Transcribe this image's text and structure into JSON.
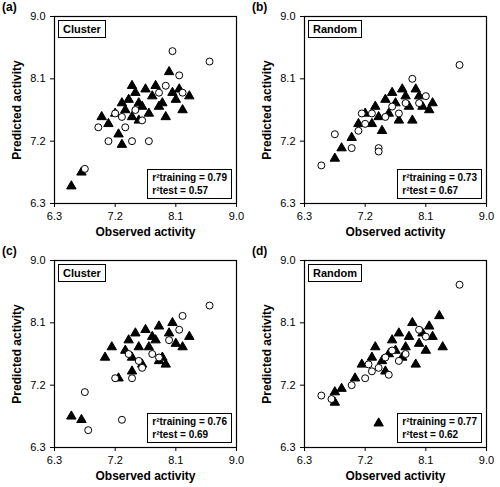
{
  "chart_data": [
    {
      "type": "scatter",
      "panel": "(a)",
      "title": "Cluster",
      "x_label": "Observed activity",
      "y_label": "Predicted activity",
      "xlim": [
        6.3,
        9.0
      ],
      "ylim": [
        6.3,
        9.0
      ],
      "xticks": [
        6.3,
        7.2,
        8.1,
        {
          "value": 9.0,
          "label": "9.0"
        }
      ],
      "yticks": [
        6.3,
        7.2,
        8.1,
        {
          "value": 9.0,
          "label": "9.0"
        }
      ],
      "grid": false,
      "annotations": [
        "r²training = 0.79",
        "r²test = 0.57"
      ],
      "series": [
        {
          "marker": "triangle",
          "color": "#000000",
          "x": [
            6.55,
            6.7,
            7.0,
            7.1,
            7.2,
            7.25,
            7.3,
            7.35,
            7.4,
            7.45,
            7.5,
            7.55,
            7.6,
            7.65,
            7.7,
            7.75,
            7.8,
            7.85,
            7.9,
            7.95,
            8.0,
            8.05,
            8.1,
            8.15,
            8.2,
            8.3,
            7.55,
            7.45,
            7.3
          ],
          "values": [
            6.55,
            6.75,
            7.55,
            7.45,
            7.6,
            7.3,
            7.75,
            7.65,
            7.8,
            7.55,
            7.9,
            7.75,
            7.7,
            7.95,
            7.6,
            7.85,
            8.0,
            7.7,
            7.75,
            7.55,
            8.2,
            7.9,
            7.8,
            7.95,
            7.65,
            7.85,
            7.5,
            8.0,
            7.15
          ]
        },
        {
          "marker": "open-circle",
          "color": "#000000",
          "x": [
            6.75,
            6.95,
            7.2,
            7.35,
            7.45,
            7.5,
            7.6,
            7.7,
            7.85,
            7.95,
            8.05,
            8.15,
            8.2,
            8.6,
            7.3,
            7.1
          ],
          "values": [
            6.8,
            7.4,
            7.6,
            7.4,
            7.2,
            7.65,
            7.5,
            7.2,
            7.9,
            8.0,
            8.5,
            8.15,
            7.9,
            8.35,
            7.55,
            7.2
          ]
        }
      ]
    },
    {
      "type": "scatter",
      "panel": "(b)",
      "title": "Random",
      "x_label": "Observed activity",
      "y_label": "Predicted activity",
      "xlim": [
        6.3,
        9.0
      ],
      "ylim": [
        6.3,
        9.0
      ],
      "xticks": [
        6.3,
        7.2,
        8.1,
        {
          "value": 9.0,
          "label": "9.0"
        }
      ],
      "yticks": [
        6.3,
        7.2,
        8.1,
        {
          "value": 9.0,
          "label": "9.0"
        }
      ],
      "grid": false,
      "annotations": [
        "r²training = 0.73",
        "r²test = 0.67"
      ],
      "series": [
        {
          "marker": "triangle",
          "color": "#000000",
          "x": [
            6.75,
            6.85,
            7.0,
            7.1,
            7.2,
            7.3,
            7.35,
            7.45,
            7.5,
            7.55,
            7.6,
            7.65,
            7.7,
            7.75,
            7.8,
            7.85,
            7.9,
            8.0,
            8.05,
            8.15,
            8.2,
            7.4,
            7.95
          ],
          "values": [
            6.95,
            7.1,
            7.25,
            7.45,
            7.6,
            7.45,
            7.7,
            7.35,
            7.8,
            7.6,
            7.9,
            7.75,
            7.5,
            7.95,
            7.85,
            7.7,
            7.5,
            7.85,
            7.7,
            7.65,
            7.75,
            7.55,
            7.95
          ]
        },
        {
          "marker": "open-circle",
          "color": "#000000",
          "x": [
            6.55,
            6.75,
            7.0,
            7.1,
            7.2,
            7.3,
            7.4,
            7.5,
            7.6,
            7.7,
            7.8,
            7.9,
            8.0,
            8.1,
            8.6,
            7.4,
            7.15
          ],
          "values": [
            6.85,
            7.3,
            7.1,
            7.35,
            7.45,
            7.6,
            7.1,
            7.55,
            7.7,
            7.6,
            7.75,
            8.1,
            7.75,
            7.85,
            8.3,
            7.05,
            7.6
          ]
        }
      ]
    },
    {
      "type": "scatter",
      "panel": "(c)",
      "title": "Cluster",
      "x_label": "Observed activity",
      "y_label": "Predicted activity",
      "xlim": [
        6.3,
        9.0
      ],
      "ylim": [
        6.3,
        9.0
      ],
      "xticks": [
        6.3,
        7.2,
        8.1,
        {
          "value": 9.0,
          "label": "9.0"
        }
      ],
      "yticks": [
        6.3,
        7.2,
        8.1,
        {
          "value": 9.0,
          "label": "9.0"
        }
      ],
      "grid": false,
      "annotations": [
        "r²training = 0.76",
        "r²test = 0.69"
      ],
      "series": [
        {
          "marker": "triangle",
          "color": "#000000",
          "x": [
            6.55,
            6.7,
            7.05,
            7.15,
            7.25,
            7.35,
            7.4,
            7.45,
            7.5,
            7.55,
            7.6,
            7.65,
            7.7,
            7.75,
            7.8,
            7.85,
            7.9,
            7.95,
            8.0,
            8.05,
            8.1,
            8.2,
            8.3,
            7.85,
            7.45
          ],
          "values": [
            6.75,
            6.7,
            7.6,
            7.75,
            7.3,
            7.7,
            7.85,
            7.6,
            7.95,
            7.75,
            7.5,
            8.0,
            7.75,
            7.9,
            7.85,
            8.05,
            7.6,
            7.5,
            7.95,
            8.1,
            7.8,
            7.75,
            7.9,
            7.55,
            7.4
          ]
        },
        {
          "marker": "open-circle",
          "color": "#000000",
          "x": [
            6.75,
            6.8,
            7.2,
            7.3,
            7.45,
            7.55,
            7.6,
            7.75,
            7.85,
            8.0,
            8.15,
            8.2,
            8.6,
            7.4
          ],
          "values": [
            7.1,
            6.55,
            7.3,
            6.7,
            7.3,
            7.55,
            7.45,
            7.65,
            7.6,
            7.85,
            8.0,
            8.2,
            8.35,
            7.65
          ]
        }
      ]
    },
    {
      "type": "scatter",
      "panel": "(d)",
      "title": "Random",
      "x_label": "Observed activity",
      "y_label": "Predicted activity",
      "xlim": [
        6.3,
        9.0
      ],
      "ylim": [
        6.3,
        9.0
      ],
      "xticks": [
        6.3,
        7.2,
        8.1,
        {
          "value": 9.0,
          "label": "9.0"
        }
      ],
      "yticks": [
        6.3,
        7.2,
        8.1,
        {
          "value": 9.0,
          "label": "9.0"
        }
      ],
      "grid": false,
      "annotations": [
        "r²training = 0.77",
        "r²test = 0.62"
      ],
      "series": [
        {
          "marker": "triangle",
          "color": "#000000",
          "x": [
            6.75,
            6.85,
            6.75,
            7.05,
            7.15,
            7.3,
            7.35,
            7.4,
            7.45,
            7.5,
            7.6,
            7.65,
            7.7,
            7.75,
            7.8,
            7.85,
            7.9,
            7.95,
            8.0,
            8.05,
            8.1,
            8.15,
            8.2,
            8.3,
            8.35,
            7.55
          ],
          "values": [
            7.1,
            7.15,
            6.95,
            7.3,
            7.5,
            7.6,
            7.75,
            6.65,
            7.55,
            7.4,
            7.85,
            7.7,
            7.95,
            7.6,
            7.75,
            7.9,
            8.1,
            7.5,
            7.8,
            7.95,
            7.7,
            8.05,
            7.9,
            8.2,
            7.75,
            7.65
          ]
        },
        {
          "marker": "open-circle",
          "color": "#000000",
          "x": [
            6.55,
            6.7,
            7.0,
            7.2,
            7.3,
            7.4,
            7.5,
            7.55,
            7.6,
            7.7,
            7.8,
            8.0,
            8.1,
            8.6,
            7.25
          ],
          "values": [
            7.05,
            7.0,
            7.2,
            7.3,
            7.4,
            7.45,
            7.6,
            7.35,
            7.7,
            7.55,
            7.65,
            8.0,
            7.9,
            8.65,
            7.5
          ]
        }
      ]
    }
  ]
}
